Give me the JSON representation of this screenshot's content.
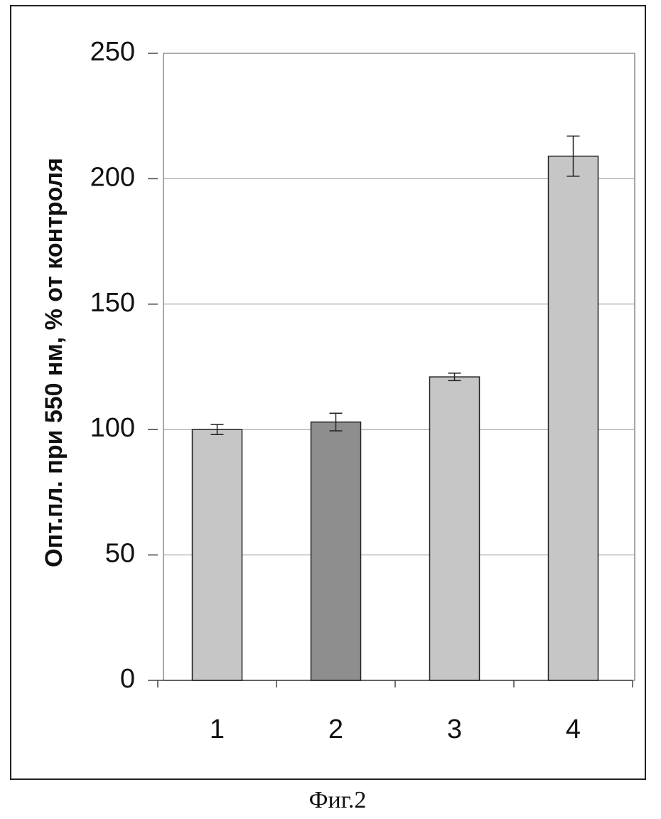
{
  "chart_data": {
    "type": "bar",
    "y_label": "Опт.пл. при 550 нм, % от контроля",
    "caption": "Фиг.2",
    "categories": [
      "1",
      "2",
      "3",
      "4"
    ],
    "values": [
      100,
      103,
      121,
      209
    ],
    "errors": [
      2,
      3.5,
      1.5,
      8
    ],
    "colors": [
      "#c6c6c6",
      "#8e8e8e",
      "#c6c6c6",
      "#c6c6c6"
    ],
    "ylim": [
      0,
      250
    ],
    "yticks": [
      0,
      50,
      100,
      150,
      200,
      250
    ],
    "grid": true
  }
}
